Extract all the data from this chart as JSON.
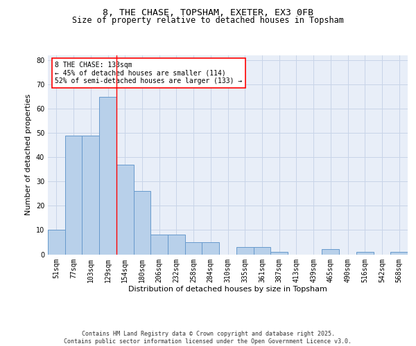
{
  "title1": "8, THE CHASE, TOPSHAM, EXETER, EX3 0FB",
  "title2": "Size of property relative to detached houses in Topsham",
  "xlabel": "Distribution of detached houses by size in Topsham",
  "ylabel": "Number of detached properties",
  "bar_labels": [
    "51sqm",
    "77sqm",
    "103sqm",
    "129sqm",
    "154sqm",
    "180sqm",
    "206sqm",
    "232sqm",
    "258sqm",
    "284sqm",
    "310sqm",
    "335sqm",
    "361sqm",
    "387sqm",
    "413sqm",
    "439sqm",
    "465sqm",
    "490sqm",
    "516sqm",
    "542sqm",
    "568sqm"
  ],
  "bar_values": [
    10,
    49,
    49,
    65,
    37,
    26,
    8,
    8,
    5,
    5,
    0,
    3,
    3,
    1,
    0,
    0,
    2,
    0,
    1,
    0,
    1
  ],
  "bar_color": "#b8d0ea",
  "bar_edge_color": "#6699cc",
  "grid_color": "#c8d4e8",
  "background_color": "#e8eef8",
  "annotation_text": "8 THE CHASE: 133sqm\n← 45% of detached houses are smaller (114)\n52% of semi-detached houses are larger (133) →",
  "annotation_box_color": "white",
  "annotation_box_edge": "red",
  "ylim": [
    0,
    82
  ],
  "yticks": [
    0,
    10,
    20,
    30,
    40,
    50,
    60,
    70,
    80
  ],
  "footer": "Contains HM Land Registry data © Crown copyright and database right 2025.\nContains public sector information licensed under the Open Government Licence v3.0.",
  "title_fontsize": 9.5,
  "subtitle_fontsize": 8.5,
  "tick_fontsize": 7,
  "ylabel_fontsize": 8,
  "xlabel_fontsize": 8,
  "annotation_fontsize": 7,
  "footer_fontsize": 6
}
